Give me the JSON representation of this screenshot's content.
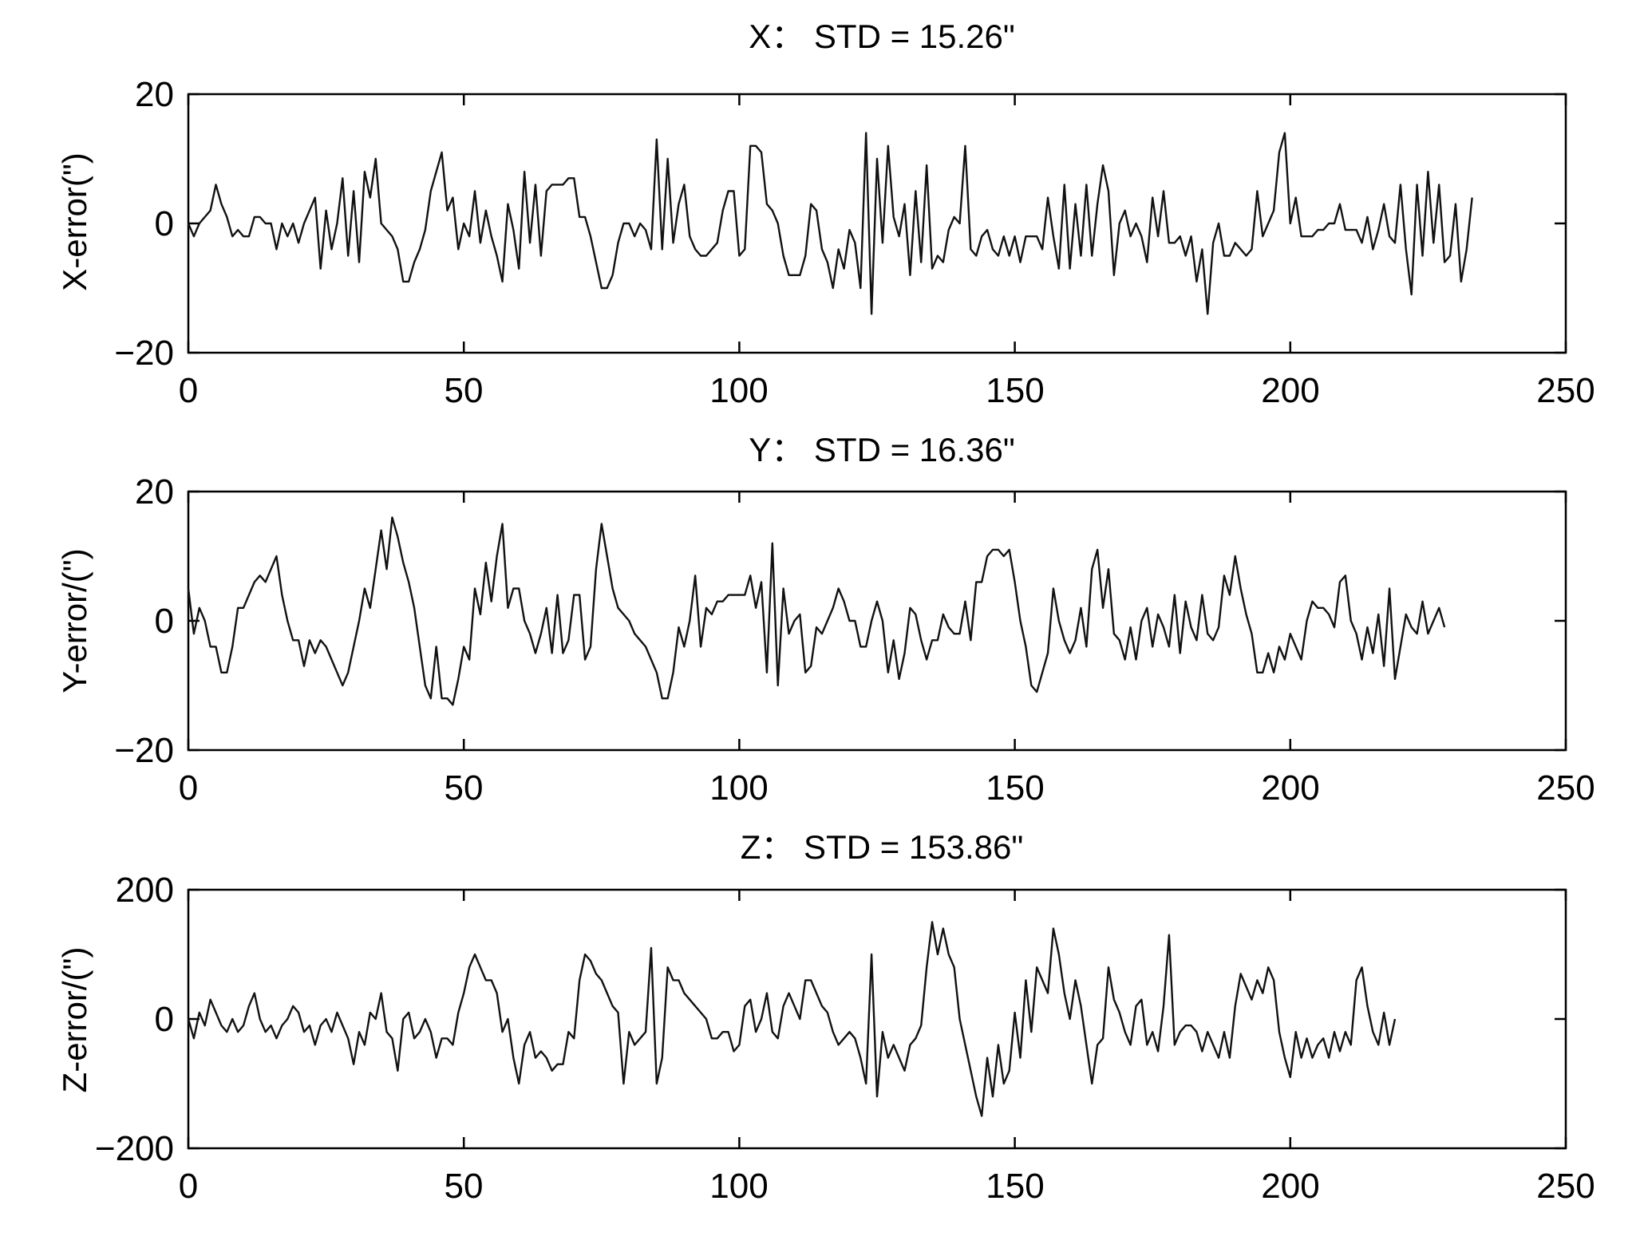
{
  "chart_data": [
    {
      "type": "line",
      "title": "X：  STD = 15.26\"",
      "ylabel": "X-error(\")",
      "xlim": [
        0,
        250
      ],
      "ylim": [
        -20,
        20
      ],
      "xticks": [
        0,
        50,
        100,
        150,
        200,
        250
      ],
      "yticks": [
        -20,
        0,
        20
      ],
      "xtick_labels": [
        "0",
        "50",
        "100",
        "150",
        "200",
        "250"
      ],
      "ytick_labels": [
        "−20",
        "0",
        "20"
      ],
      "grid": false,
      "series": [
        {
          "x_start": 0,
          "x_step": 1,
          "values": [
            0,
            -2,
            0,
            1,
            2,
            6,
            3,
            1,
            -2,
            -1,
            -2,
            -2,
            1,
            1,
            0,
            0,
            -4,
            0,
            -2,
            0,
            -3,
            0,
            2,
            4,
            -7,
            2,
            -4,
            0,
            7,
            -5,
            5,
            -6,
            8,
            4,
            10,
            0,
            -1,
            -2,
            -4,
            -9,
            -9,
            -6,
            -4,
            -1,
            5,
            8,
            11,
            2,
            4,
            -4,
            0,
            -2,
            5,
            -3,
            2,
            -2,
            -5,
            -9,
            3,
            -1,
            -7,
            8,
            -3,
            6,
            -5,
            5,
            6,
            6,
            6,
            7,
            7,
            1,
            1,
            -2,
            -6,
            -10,
            -10,
            -8,
            -3,
            0,
            0,
            -2,
            0,
            -1,
            -4,
            13,
            -4,
            10,
            -3,
            3,
            6,
            -2,
            -4,
            -5,
            -5,
            -4,
            -3,
            2,
            5,
            5,
            -5,
            -4,
            12,
            12,
            11,
            3,
            2,
            0,
            -5,
            -8,
            -8,
            -8,
            -5,
            3,
            2,
            -4,
            -6,
            -10,
            -4,
            -7,
            -1,
            -3,
            -10,
            14,
            -14,
            10,
            -3,
            12,
            1,
            -2,
            3,
            -8,
            5,
            -6,
            9,
            -7,
            -5,
            -6,
            -1,
            1,
            0,
            12,
            -4,
            -5,
            -2,
            -1,
            -4,
            -5,
            -2,
            -5,
            -2,
            -6,
            -2,
            -2,
            -2,
            -4,
            4,
            -2,
            -7,
            6,
            -7,
            3,
            -5,
            6,
            -5,
            3,
            9,
            5,
            -8,
            0,
            2,
            -2,
            0,
            -2,
            -6,
            4,
            -2,
            5,
            -3,
            -3,
            -2,
            -5,
            -2,
            -9,
            -4,
            -14,
            -3,
            0,
            -5,
            -5,
            -3,
            -4,
            -5,
            -4,
            5,
            -2,
            0,
            2,
            11,
            14,
            0,
            4,
            -2,
            -2,
            -2,
            -1,
            -1,
            0,
            0,
            3,
            -1,
            -1,
            -1,
            -3,
            1,
            -4,
            -1,
            3,
            -2,
            -3,
            6,
            -4,
            -11,
            6,
            -5,
            8,
            -3,
            6,
            -6,
            -5,
            3,
            -9,
            -4,
            4
          ]
        }
      ]
    },
    {
      "type": "line",
      "title": "Y：  STD = 16.36\"",
      "ylabel": "Y-error/(\")",
      "xlim": [
        0,
        250
      ],
      "ylim": [
        -20,
        20
      ],
      "xticks": [
        0,
        50,
        100,
        150,
        200,
        250
      ],
      "yticks": [
        -20,
        0,
        20
      ],
      "xtick_labels": [
        "0",
        "50",
        "100",
        "150",
        "200",
        "250"
      ],
      "ytick_labels": [
        "−20",
        "0",
        "20"
      ],
      "grid": false,
      "series": [
        {
          "x_start": 0,
          "x_step": 1,
          "values": [
            5,
            -2,
            2,
            0,
            -4,
            -4,
            -8,
            -8,
            -4,
            2,
            2,
            4,
            6,
            7,
            6,
            8,
            10,
            4,
            0,
            -3,
            -3,
            -7,
            -3,
            -5,
            -3,
            -4,
            -6,
            -8,
            -10,
            -8,
            -4,
            0,
            5,
            2,
            8,
            14,
            8,
            16,
            13,
            9,
            6,
            2,
            -4,
            -10,
            -12,
            -4,
            -12,
            -12,
            -13,
            -9,
            -4,
            -6,
            5,
            1,
            9,
            3,
            10,
            15,
            2,
            5,
            5,
            0,
            -2,
            -5,
            -2,
            2,
            -5,
            4,
            -5,
            -3,
            4,
            4,
            -6,
            -4,
            8,
            15,
            10,
            5,
            2,
            1,
            0,
            -2,
            -3,
            -4,
            -6,
            -8,
            -12,
            -12,
            -8,
            -1,
            -4,
            0,
            7,
            -4,
            2,
            1,
            3,
            3,
            4,
            4,
            4,
            4,
            7,
            2,
            6,
            -8,
            12,
            -10,
            5,
            -2,
            0,
            1,
            -8,
            -7,
            -1,
            -2,
            0,
            2,
            5,
            3,
            0,
            0,
            -4,
            -4,
            0,
            3,
            0,
            -8,
            -3,
            -9,
            -5,
            2,
            1,
            -3,
            -6,
            -3,
            -3,
            1,
            -1,
            -2,
            -2,
            3,
            -3,
            6,
            6,
            10,
            11,
            11,
            10,
            11,
            6,
            0,
            -4,
            -10,
            -11,
            -8,
            -5,
            5,
            0,
            -3,
            -5,
            -3,
            2,
            -4,
            8,
            11,
            2,
            8,
            -2,
            -3,
            -6,
            -1,
            -6,
            0,
            2,
            -4,
            1,
            -1,
            -4,
            4,
            -5,
            3,
            -1,
            -3,
            4,
            -2,
            -3,
            -1,
            7,
            4,
            10,
            5,
            1,
            -2,
            -8,
            -8,
            -5,
            -8,
            -4,
            -6,
            -2,
            -4,
            -6,
            0,
            3,
            2,
            2,
            1,
            -1,
            6,
            7,
            0,
            -2,
            -6,
            -1,
            -5,
            1,
            -7,
            5,
            -9,
            -4,
            1,
            -1,
            -2,
            3,
            -2,
            0,
            2,
            -1
          ]
        }
      ]
    },
    {
      "type": "line",
      "title": "Z：  STD = 153.86\"",
      "ylabel": "Z-error/(\")",
      "xlim": [
        0,
        250
      ],
      "ylim": [
        -200,
        200
      ],
      "xticks": [
        0,
        50,
        100,
        150,
        200,
        250
      ],
      "yticks": [
        -200,
        0,
        200
      ],
      "xtick_labels": [
        "0",
        "50",
        "100",
        "150",
        "200",
        "250"
      ],
      "ytick_labels": [
        "−200",
        "0",
        "200"
      ],
      "grid": false,
      "series": [
        {
          "x_start": 0,
          "x_step": 1,
          "values": [
            0,
            -30,
            10,
            -10,
            30,
            10,
            -10,
            -20,
            0,
            -20,
            -10,
            20,
            40,
            0,
            -20,
            -10,
            -30,
            -10,
            0,
            20,
            10,
            -20,
            -10,
            -40,
            -10,
            0,
            -20,
            10,
            -10,
            -30,
            -70,
            -20,
            -40,
            10,
            0,
            40,
            -20,
            -30,
            -80,
            0,
            10,
            -30,
            -20,
            0,
            -20,
            -60,
            -30,
            -30,
            -40,
            10,
            40,
            80,
            100,
            80,
            60,
            60,
            40,
            -20,
            0,
            -60,
            -100,
            -40,
            -20,
            -60,
            -50,
            -60,
            -80,
            -70,
            -70,
            -20,
            -30,
            60,
            100,
            90,
            70,
            60,
            40,
            20,
            10,
            -100,
            -20,
            -40,
            -30,
            -20,
            110,
            -100,
            -60,
            80,
            60,
            60,
            40,
            30,
            20,
            10,
            0,
            -30,
            -30,
            -20,
            -20,
            -50,
            -40,
            20,
            30,
            -20,
            0,
            40,
            -20,
            -30,
            20,
            40,
            20,
            0,
            60,
            60,
            40,
            20,
            10,
            -20,
            -40,
            -30,
            -20,
            -30,
            -60,
            -100,
            100,
            -120,
            -20,
            -60,
            -40,
            -60,
            -80,
            -40,
            -30,
            -10,
            80,
            150,
            100,
            140,
            100,
            80,
            0,
            -40,
            -80,
            -120,
            -150,
            -60,
            -120,
            -40,
            -100,
            -80,
            10,
            -60,
            60,
            -20,
            80,
            60,
            40,
            140,
            100,
            40,
            0,
            60,
            20,
            -40,
            -100,
            -40,
            -30,
            80,
            30,
            10,
            -20,
            -40,
            20,
            30,
            -40,
            -20,
            -50,
            20,
            130,
            -40,
            -20,
            -10,
            -10,
            -20,
            -50,
            -20,
            -40,
            -60,
            -20,
            -60,
            20,
            70,
            50,
            30,
            60,
            40,
            80,
            60,
            -20,
            -60,
            -90,
            -20,
            -60,
            -30,
            -60,
            -40,
            -30,
            -60,
            -20,
            -50,
            -20,
            -40,
            60,
            80,
            20,
            -20,
            -40,
            10,
            -40,
            0
          ]
        }
      ]
    }
  ]
}
